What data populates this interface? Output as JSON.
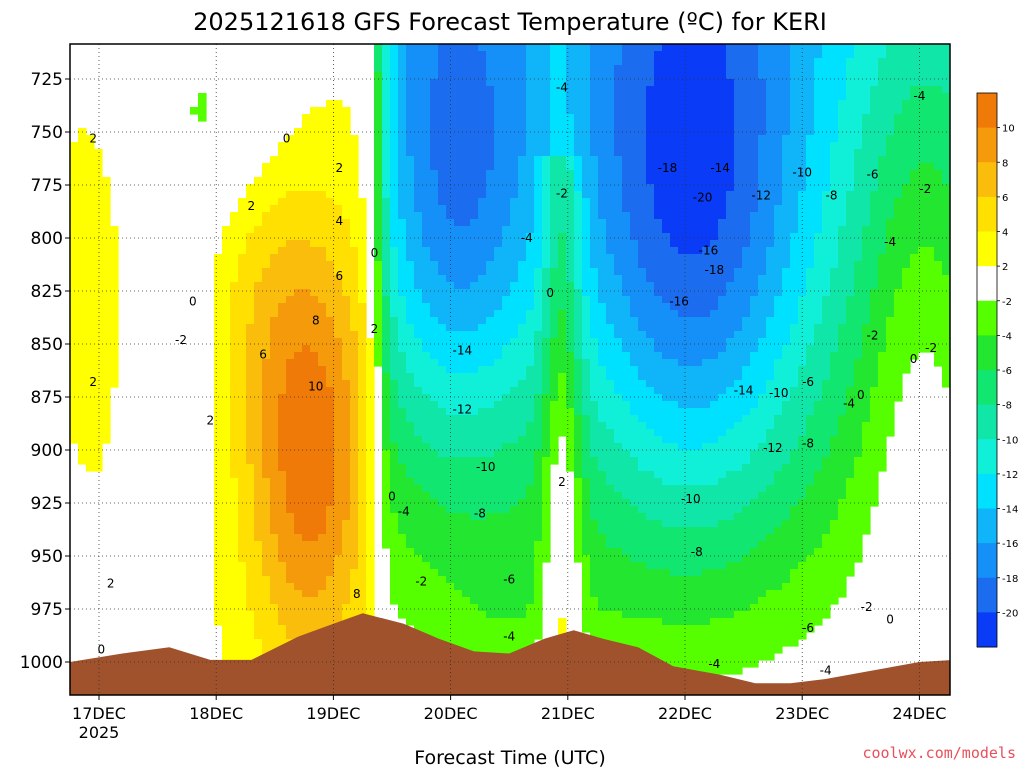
{
  "chart_data": {
    "type": "heatmap",
    "title": "2025121618 GFS Forecast Temperature (ºC) for KERI",
    "xlabel": "Forecast Time (UTC)",
    "ylabel": "",
    "credit": "coolwx.com/models",
    "y_ticks": [
      "725",
      "750",
      "775",
      "800",
      "825",
      "850",
      "875",
      "900",
      "925",
      "950",
      "975",
      "1000"
    ],
    "x_ticks": [
      "17DEC",
      "18DEC",
      "19DEC",
      "20DEC",
      "21DEC",
      "22DEC",
      "23DEC",
      "24DEC"
    ],
    "x_tick_sub": "2025",
    "ylim": [
      1012,
      710
    ],
    "y_scale": "pressure (inverted)",
    "grid": true,
    "colorbar": {
      "labels": [
        "10",
        "8",
        "6",
        "4",
        "2",
        "-2",
        "-4",
        "-6",
        "-8",
        "-10",
        "-12",
        "-14",
        "-16",
        "-18",
        "-20"
      ],
      "colors": [
        "#f07a08",
        "#f59a0a",
        "#fbbd0c",
        "#ffe000",
        "#ffff00",
        "#ffffff",
        "#55ff00",
        "#22e630",
        "#10e670",
        "#10e6a8",
        "#10f0d8",
        "#00e0ff",
        "#10b4f8",
        "#1490f8",
        "#1c6cf0",
        "#0a3cf8"
      ]
    },
    "contour_labels": [
      {
        "v": "2",
        "t": -0.05,
        "p": 753
      },
      {
        "v": "2",
        "t": -0.05,
        "p": 868
      },
      {
        "v": "2",
        "t": 0.1,
        "p": 963
      },
      {
        "v": "0",
        "t": 0.02,
        "p": 994
      },
      {
        "v": "0",
        "t": 0.8,
        "p": 830
      },
      {
        "v": "-2",
        "t": 0.7,
        "p": 848
      },
      {
        "v": "2",
        "t": 0.95,
        "p": 886
      },
      {
        "v": "0",
        "t": 1.6,
        "p": 753
      },
      {
        "v": "2",
        "t": 1.3,
        "p": 785
      },
      {
        "v": "2",
        "t": 2.05,
        "p": 767
      },
      {
        "v": "4",
        "t": 2.05,
        "p": 792
      },
      {
        "v": "6",
        "t": 2.05,
        "p": 818
      },
      {
        "v": "8",
        "t": 1.85,
        "p": 839
      },
      {
        "v": "6",
        "t": 1.4,
        "p": 855
      },
      {
        "v": "10",
        "t": 1.85,
        "p": 870
      },
      {
        "v": "0",
        "t": 2.35,
        "p": 807
      },
      {
        "v": "2",
        "t": 2.35,
        "p": 843
      },
      {
        "v": "0",
        "t": 2.5,
        "p": 922
      },
      {
        "v": "-4",
        "t": 2.6,
        "p": 929
      },
      {
        "v": "8",
        "t": 2.2,
        "p": 968
      },
      {
        "v": "-2",
        "t": 2.75,
        "p": 962
      },
      {
        "v": "-4",
        "t": 3.95,
        "p": 729
      },
      {
        "v": "-2",
        "t": 3.95,
        "p": 779
      },
      {
        "v": "-4",
        "t": 3.65,
        "p": 800
      },
      {
        "v": "0",
        "t": 3.85,
        "p": 826
      },
      {
        "v": "-14",
        "t": 3.1,
        "p": 853
      },
      {
        "v": "-12",
        "t": 3.1,
        "p": 881
      },
      {
        "v": "-10",
        "t": 3.3,
        "p": 908
      },
      {
        "v": "-8",
        "t": 3.25,
        "p": 930
      },
      {
        "v": "2",
        "t": 3.95,
        "p": 915
      },
      {
        "v": "-6",
        "t": 3.5,
        "p": 961
      },
      {
        "v": "-4",
        "t": 3.5,
        "p": 988
      },
      {
        "v": "-18",
        "t": 4.85,
        "p": 767
      },
      {
        "v": "-14",
        "t": 5.3,
        "p": 767
      },
      {
        "v": "-20",
        "t": 5.15,
        "p": 781
      },
      {
        "v": "-16",
        "t": 5.2,
        "p": 806
      },
      {
        "v": "-18",
        "t": 5.25,
        "p": 815
      },
      {
        "v": "-16",
        "t": 4.95,
        "p": 830
      },
      {
        "v": "-10",
        "t": 6.0,
        "p": 769
      },
      {
        "v": "-12",
        "t": 5.65,
        "p": 780
      },
      {
        "v": "-8",
        "t": 6.25,
        "p": 780
      },
      {
        "v": "-6",
        "t": 6.6,
        "p": 770
      },
      {
        "v": "-4",
        "t": 7.0,
        "p": 733
      },
      {
        "v": "-2",
        "t": 7.05,
        "p": 777
      },
      {
        "v": "-4",
        "t": 6.75,
        "p": 802
      },
      {
        "v": "-2",
        "t": 6.6,
        "p": 846
      },
      {
        "v": "-2",
        "t": 7.1,
        "p": 852
      },
      {
        "v": "0",
        "t": 6.95,
        "p": 857
      },
      {
        "v": "-6",
        "t": 6.05,
        "p": 868
      },
      {
        "v": "-14",
        "t": 5.5,
        "p": 872
      },
      {
        "v": "-10",
        "t": 5.8,
        "p": 873
      },
      {
        "v": "-4",
        "t": 6.4,
        "p": 878
      },
      {
        "v": "0",
        "t": 6.5,
        "p": 874
      },
      {
        "v": "-12",
        "t": 5.75,
        "p": 899
      },
      {
        "v": "-8",
        "t": 6.05,
        "p": 897
      },
      {
        "v": "-10",
        "t": 5.05,
        "p": 923
      },
      {
        "v": "-8",
        "t": 5.1,
        "p": 948
      },
      {
        "v": "-6",
        "t": 6.05,
        "p": 984
      },
      {
        "v": "-2",
        "t": 6.55,
        "p": 974
      },
      {
        "v": "0",
        "t": 6.75,
        "p": 980
      },
      {
        "v": "-4",
        "t": 5.25,
        "p": 1001
      },
      {
        "v": "-4",
        "t": 6.2,
        "p": 1004
      }
    ]
  }
}
